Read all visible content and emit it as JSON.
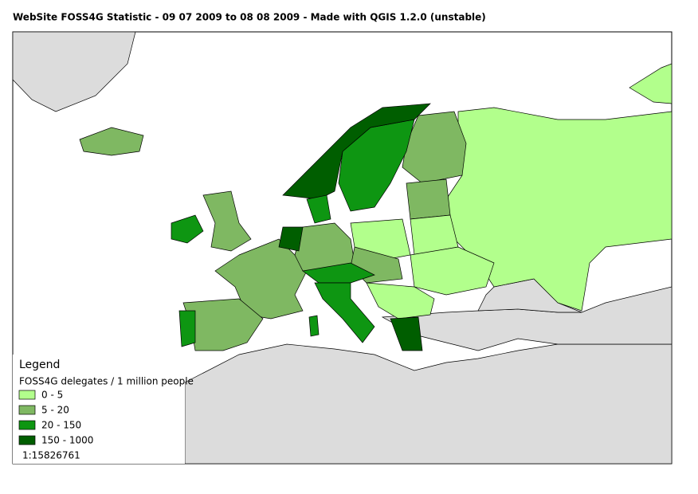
{
  "header": {
    "title": "WebSite FOSS4G Statistic - 09 07 2009 to 08 08 2009 - Made with QGIS 1.2.0 (unstable)"
  },
  "legend": {
    "title": "Legend",
    "subtitle": "FOSS4G delegates / 1 million people",
    "items": [
      {
        "label": "0 - 5",
        "color": "#b2ff8c"
      },
      {
        "label": "5 - 20",
        "color": "#7fb862"
      },
      {
        "label": "20 - 150",
        "color": "#0e9612"
      },
      {
        "label": "150 - 1000",
        "color": "#005e00"
      }
    ]
  },
  "scale": "1:15826761"
}
